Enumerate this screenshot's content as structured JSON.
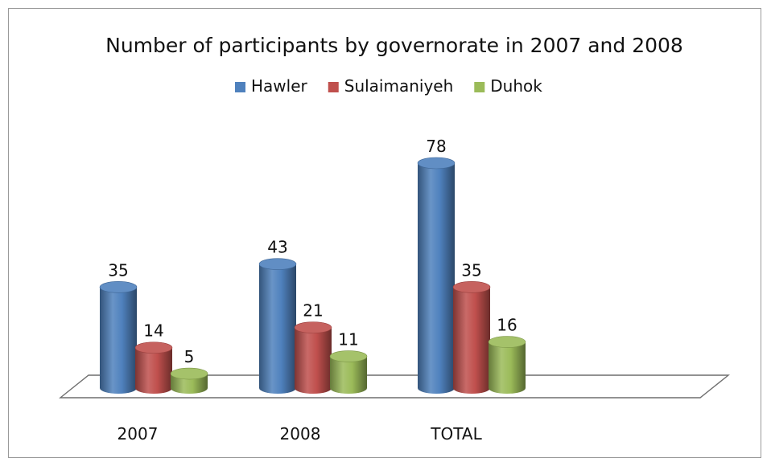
{
  "chart_data": {
    "type": "bar",
    "title": "Number of participants by governorate in 2007 and 2008",
    "categories": [
      "2007",
      "2008",
      "TOTAL"
    ],
    "series": [
      {
        "name": "Hawler",
        "values": [
          35,
          43,
          78
        ],
        "color": "#4F81BD"
      },
      {
        "name": "Sulaimaniyeh",
        "values": [
          14,
          21,
          35
        ],
        "color": "#C0504D"
      },
      {
        "name": "Duhok",
        "values": [
          5,
          11,
          16
        ],
        "color": "#9BBB59"
      }
    ],
    "legend_position": "top",
    "grid": false,
    "ylim": [
      0,
      78
    ]
  }
}
